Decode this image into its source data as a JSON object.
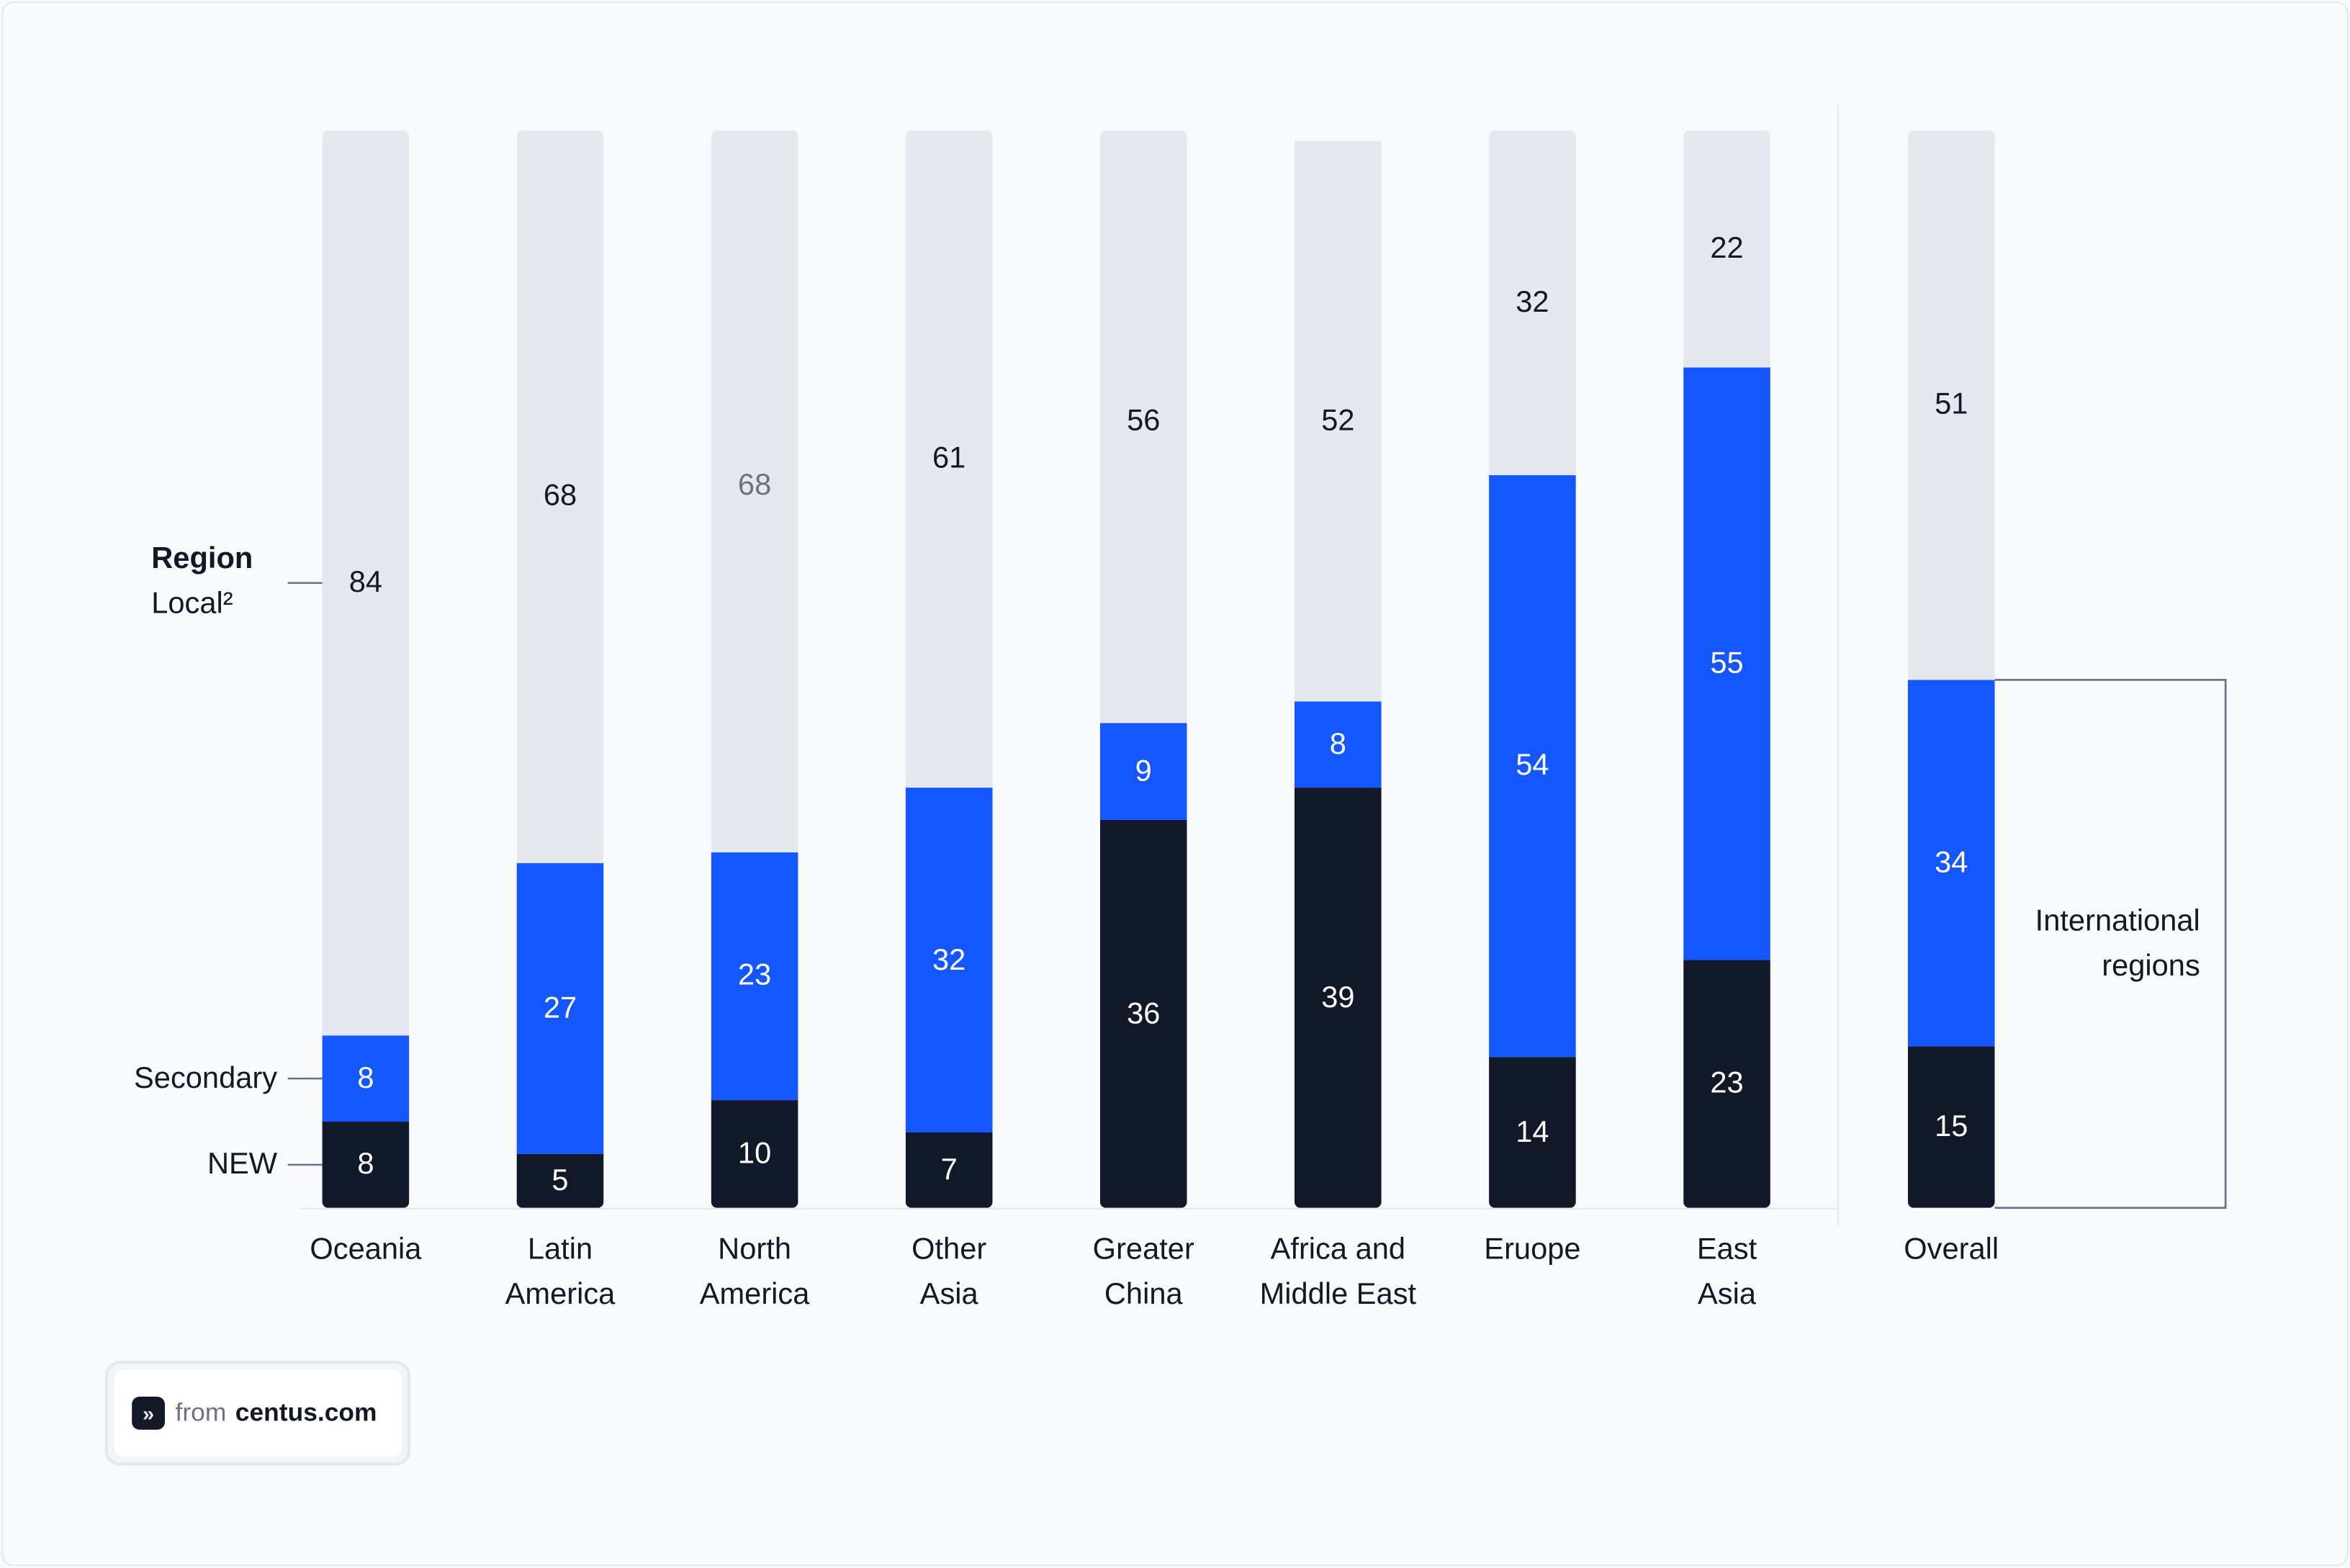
{
  "chart_data": {
    "type": "bar",
    "stacked": true,
    "categories": [
      "Oceania",
      "Latin America",
      "North America",
      "Other Asia",
      "Greater China",
      "Africa and Middle East",
      "Eruope",
      "East Asia",
      "Overall"
    ],
    "category_lines": [
      [
        "Oceania"
      ],
      [
        "Latin",
        "America"
      ],
      [
        "North",
        "America"
      ],
      [
        "Other",
        "Asia"
      ],
      [
        "Greater",
        "China"
      ],
      [
        "Africa and",
        "Middle East"
      ],
      [
        "Eruope"
      ],
      [
        "East",
        "Asia"
      ],
      [
        "Overall"
      ]
    ],
    "series": [
      {
        "name": "NEW",
        "color": "#111827",
        "values": [
          8,
          5,
          10,
          7,
          36,
          39,
          14,
          23,
          15
        ]
      },
      {
        "name": "Secondary",
        "color": "#1557ff",
        "values": [
          8,
          27,
          23,
          32,
          9,
          8,
          54,
          55,
          34
        ]
      },
      {
        "name": "Local²",
        "color": "#e5e8ee",
        "values": [
          84,
          68,
          68,
          61,
          56,
          52,
          32,
          22,
          51
        ]
      }
    ],
    "ylim": [
      0,
      100
    ],
    "legend_title": "Region",
    "legend_placement": "left",
    "annotation": "International regions",
    "annotation_lines": [
      "International",
      "regions"
    ],
    "highlighted_label": {
      "category": "North America",
      "series": "Local²",
      "color": "#6b7280"
    }
  },
  "footer": {
    "logo": "centus-logo-icon",
    "from": "from",
    "site": "centus.com"
  }
}
